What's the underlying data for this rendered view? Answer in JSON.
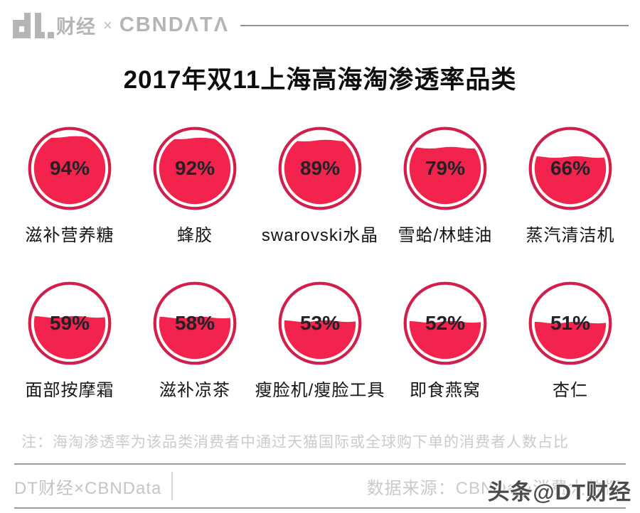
{
  "header": {
    "logo": {
      "cn": "财经",
      "cross": "×",
      "cbn": "CBNDΛTΛ"
    }
  },
  "title": "2017年双11上海高海淘渗透率品类",
  "chart_data": {
    "type": "pictorial-fill-circles",
    "title": "2017年双11上海高海淘渗透率品类",
    "categories": [
      "滋补营养糖",
      "蜂胶",
      "swarovski水晶",
      "雪蛤/林蛙油",
      "蒸汽清洁机",
      "面部按摩霜",
      "滋补凉茶",
      "瘦脸机/瘦脸工具",
      "即食燕窝",
      "杏仁"
    ],
    "values": [
      94,
      92,
      89,
      79,
      66,
      59,
      58,
      53,
      52,
      51
    ],
    "unit": "%",
    "value_range": [
      0,
      100
    ],
    "layout": {
      "rows": 2,
      "cols": 5
    },
    "colors": {
      "fill": "#f2244e",
      "ring": "#d01f4a",
      "value_text": "#232026"
    }
  },
  "note": "注：海淘渗透率为该品类消费者中通过天猫国际或全球购下单的消费者人数占比",
  "footer": {
    "left": "DT财经×CBNData",
    "source": "数据来源：CBNData消费大数据",
    "watermark": "头条@DT财经"
  }
}
